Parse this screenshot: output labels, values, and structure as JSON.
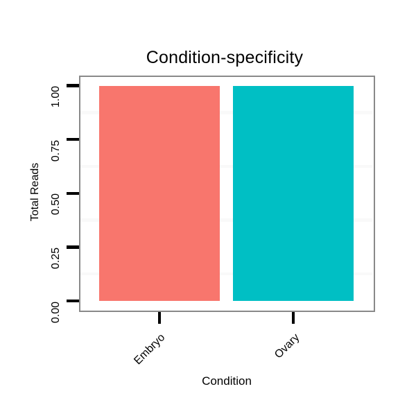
{
  "chart_data": {
    "type": "bar",
    "title": "Condition-specificity",
    "xlabel": "Condition",
    "ylabel": "Total Reads",
    "categories": [
      "Embryo",
      "Ovary"
    ],
    "values": [
      1.0,
      1.0
    ],
    "bar_colors": [
      "#F8766D",
      "#00BFC4"
    ],
    "y_ticks": [
      {
        "value": 0.0,
        "label": "0.00"
      },
      {
        "value": 0.25,
        "label": "0.25"
      },
      {
        "value": 0.5,
        "label": "0.50"
      },
      {
        "value": 0.75,
        "label": "0.75"
      },
      {
        "value": 1.0,
        "label": "1.00"
      }
    ],
    "y_minor_gridlines": [
      0.125,
      0.375,
      0.625,
      0.875
    ],
    "ylim": [
      -0.047,
      1.047
    ],
    "grid": "minor-horizontal-only",
    "legend": "none",
    "panel_border_color": "#898989",
    "gridline_color": "#f9f9f9",
    "tick_color": "#000000",
    "text_color": "#000000",
    "background_color": "#ffffff"
  }
}
